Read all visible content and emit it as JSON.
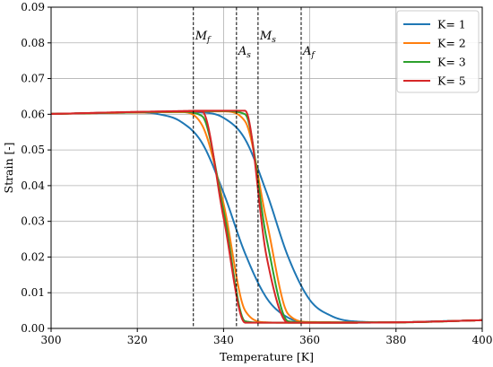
{
  "chart_data": {
    "type": "line",
    "xlabel": "Temperature [K]",
    "ylabel": "Strain [-]",
    "xlim": [
      300,
      400
    ],
    "ylim": [
      0,
      0.09
    ],
    "xticks": [
      300,
      320,
      340,
      360,
      380,
      400
    ],
    "xtick_labels": [
      "300",
      "320",
      "340",
      "360",
      "380",
      "400"
    ],
    "yticks": [
      0,
      0.01,
      0.02,
      0.03,
      0.04,
      0.05,
      0.06,
      0.07,
      0.08,
      0.09
    ],
    "ytick_labels": [
      "0.00",
      "0.01",
      "0.02",
      "0.03",
      "0.04",
      "0.05",
      "0.06",
      "0.07",
      "0.08",
      "0.09"
    ],
    "grid": true,
    "legend_position": "top-right",
    "transformation_temperatures": [
      {
        "symbol": "M",
        "subscript": "f",
        "value": 333
      },
      {
        "symbol": "A",
        "subscript": "s",
        "value": 343
      },
      {
        "symbol": "M",
        "subscript": "s",
        "value": 348
      },
      {
        "symbol": "A",
        "subscript": "f",
        "value": 358
      }
    ],
    "series": [
      {
        "name": "K= 1",
        "color": "#1f77b4",
        "cooling_midpoint": 340.5,
        "heating_midpoint": 350.5,
        "x": [
          300,
          320,
          325,
          330,
          335,
          340,
          345,
          350,
          355,
          360,
          365,
          370,
          380,
          390,
          400
        ],
        "cooling_strain": [
          0.0601,
          0.0605,
          0.06,
          0.058,
          0.052,
          0.038,
          0.021,
          0.0085,
          0.003,
          0.0017,
          0.0016,
          0.0016,
          0.0017,
          0.002,
          0.0023
        ],
        "heating_strain": [
          0.0601,
          0.0605,
          0.0606,
          0.0606,
          0.0605,
          0.059,
          0.053,
          0.038,
          0.02,
          0.008,
          0.0035,
          0.002,
          0.0017,
          0.002,
          0.0023
        ]
      },
      {
        "name": "K= 2",
        "color": "#ff7f0e",
        "cooling_midpoint": 340.5,
        "heating_midpoint": 350.5,
        "x": [
          300,
          330,
          335,
          340,
          345,
          350,
          355,
          360,
          380,
          400
        ],
        "cooling_strain": [
          0.0601,
          0.0606,
          0.057,
          0.035,
          0.005,
          0.0017,
          0.0016,
          0.0016,
          0.0017,
          0.0023
        ],
        "heating_strain": [
          0.0601,
          0.0607,
          0.0608,
          0.0608,
          0.058,
          0.03,
          0.004,
          0.0018,
          0.0017,
          0.0023
        ]
      },
      {
        "name": "K= 3",
        "color": "#2ca02c",
        "cooling_midpoint": 340.5,
        "heating_midpoint": 350.5,
        "x": [
          300,
          330,
          335,
          340,
          345,
          350,
          355,
          360,
          380,
          400
        ],
        "cooling_strain": [
          0.0601,
          0.0607,
          0.0595,
          0.033,
          0.002,
          0.0016,
          0.0016,
          0.0016,
          0.0017,
          0.0023
        ],
        "heating_strain": [
          0.0601,
          0.0608,
          0.0609,
          0.0609,
          0.06,
          0.025,
          0.002,
          0.0017,
          0.0017,
          0.0023
        ]
      },
      {
        "name": "K= 5",
        "color": "#d62728",
        "cooling_midpoint": 340.5,
        "heating_midpoint": 350.5,
        "x": [
          300,
          330,
          335,
          340,
          345,
          350,
          355,
          360,
          380,
          400
        ],
        "cooling_strain": [
          0.0601,
          0.0608,
          0.0608,
          0.031,
          0.0016,
          0.0016,
          0.0016,
          0.0016,
          0.0017,
          0.0023
        ],
        "heating_strain": [
          0.0601,
          0.0609,
          0.061,
          0.061,
          0.061,
          0.02,
          0.0016,
          0.0016,
          0.0017,
          0.0023
        ]
      }
    ]
  }
}
